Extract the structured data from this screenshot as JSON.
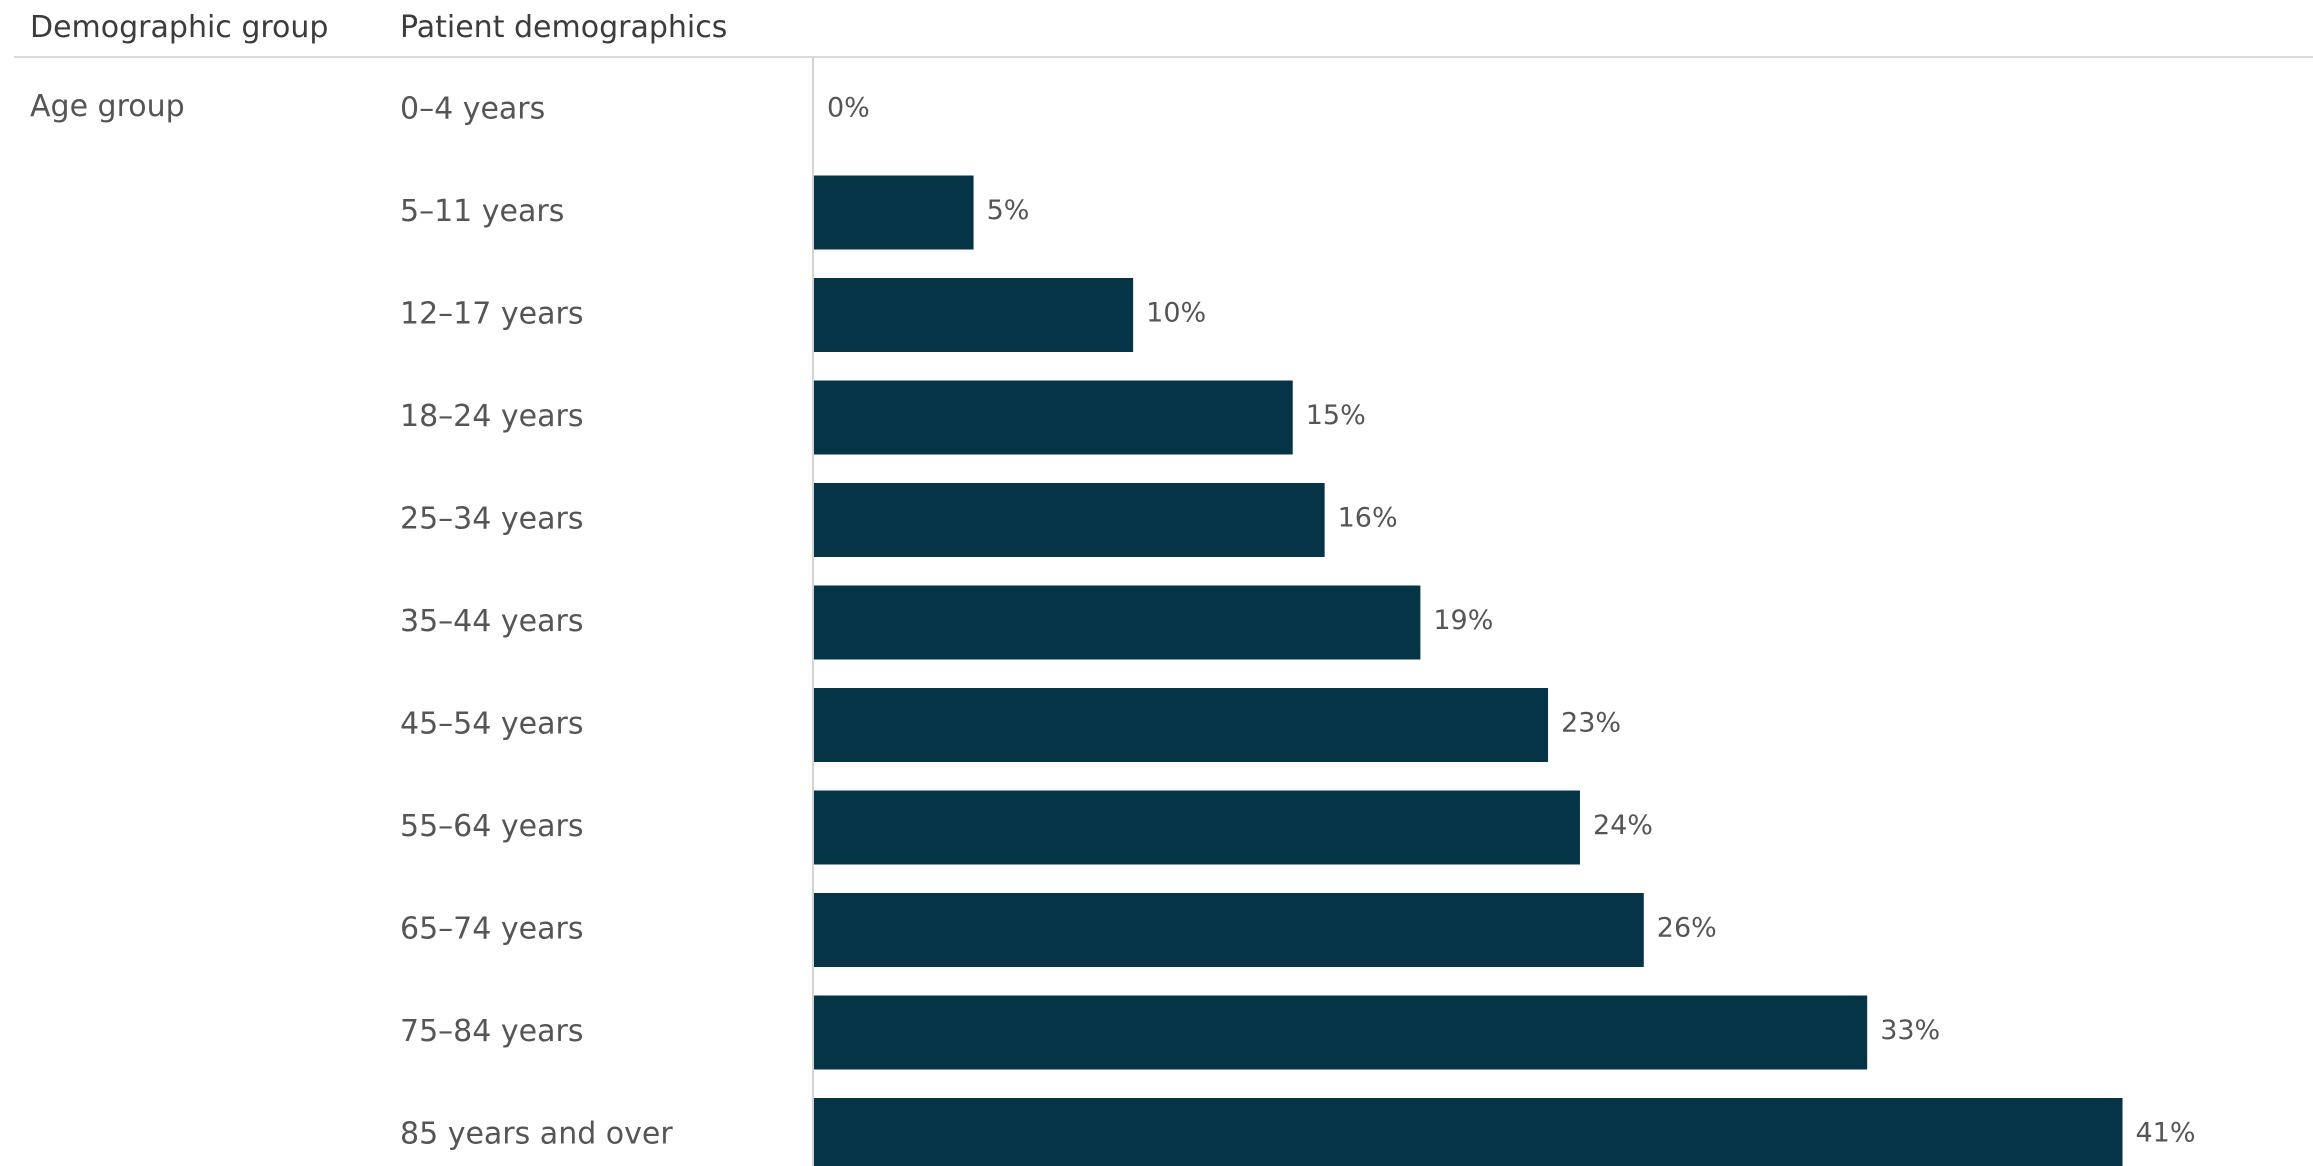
{
  "header": {
    "group_col": "Demographic group",
    "demo_col": "Patient demographics"
  },
  "group_label": "Age group",
  "colors": {
    "bar": "#063447",
    "axis": "#d3d3d3",
    "rule": "#d9d9d9"
  },
  "chart_data": {
    "type": "bar",
    "orientation": "horizontal",
    "title": "",
    "xlabel": "",
    "ylabel": "",
    "grid": false,
    "categories": [
      "0–4 years",
      "5–11 years",
      "12–17 years",
      "18–24 years",
      "25–34 years",
      "35–44 years",
      "45–54 years",
      "55–64 years",
      "65–74 years",
      "75–84 years",
      "85 years and over"
    ],
    "values": [
      0,
      5,
      10,
      15,
      16,
      19,
      23,
      24,
      26,
      33,
      41
    ],
    "data_labels": [
      "0%",
      "5%",
      "10%",
      "15%",
      "16%",
      "19%",
      "23%",
      "24%",
      "26%",
      "33%",
      "41%"
    ],
    "xlim": [
      0,
      47
    ]
  }
}
